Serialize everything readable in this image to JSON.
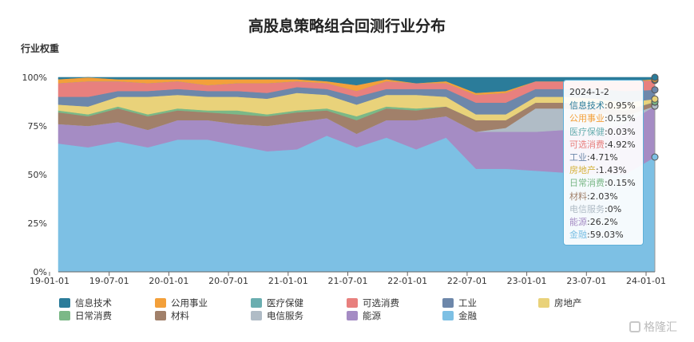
{
  "title": "高股息策略组合回测行业分布",
  "ylabel": "行业权重",
  "watermark": "格隆汇",
  "colors": {
    "信息技术": "#2b7c9a",
    "公用事业": "#f3a03a",
    "医疗保健": "#6aaeb0",
    "可选消费": "#e8807e",
    "工业": "#6d87aa",
    "房地产": "#e9d27a",
    "日常消费": "#7bb887",
    "材料": "#a1806a",
    "电信服务": "#b0bcc6",
    "能源": "#a58cc4",
    "金融": "#7dc0e4"
  },
  "tooltip": {
    "date": "2024-1-2",
    "rows": [
      {
        "name": "信息技术",
        "value": "0.95%"
      },
      {
        "name": "公用事业",
        "value": "0.55%"
      },
      {
        "name": "医疗保健",
        "value": "0.03%"
      },
      {
        "name": "可选消费",
        "value": "4.92%"
      },
      {
        "name": "工业",
        "value": "4.71%"
      },
      {
        "name": "房地产",
        "value": "1.43%"
      },
      {
        "name": "日常消费",
        "value": "0.15%"
      },
      {
        "name": "材料",
        "value": "2.03%"
      },
      {
        "name": "电信服务",
        "value": "0%"
      },
      {
        "name": "能源",
        "value": "26.2%"
      },
      {
        "name": "金融",
        "value": "59.03%"
      }
    ]
  },
  "legend": [
    "信息技术",
    "公用事业",
    "医疗保健",
    "可选消费",
    "工业",
    "房地产",
    "日常消费",
    "材料",
    "电信服务",
    "能源",
    "金融"
  ],
  "chart_data": {
    "type": "area",
    "stacked": true,
    "normalized": true,
    "title": "高股息策略组合回测行业分布",
    "ylabel": "行业权重",
    "ylim": [
      0,
      100
    ],
    "y_ticks": [
      "0%",
      "25%",
      "50%",
      "75%",
      "100%"
    ],
    "x_ticks": [
      "19-01-01",
      "19-07-01",
      "20-01-01",
      "20-07-01",
      "21-01-01",
      "21-07-01",
      "22-01-01",
      "22-07-01",
      "23-01-01",
      "23-07-01",
      "24-01-01"
    ],
    "x": [
      "2019-01",
      "2019-04",
      "2019-07",
      "2019-10",
      "2020-01",
      "2020-04",
      "2020-07",
      "2020-10",
      "2021-01",
      "2021-04",
      "2021-07",
      "2021-10",
      "2022-01",
      "2022-04",
      "2022-07",
      "2022-10",
      "2023-01",
      "2023-04",
      "2023-07",
      "2023-10",
      "2024-01"
    ],
    "series": [
      {
        "name": "金融",
        "values": [
          66,
          64,
          67,
          64,
          68,
          68,
          65,
          62,
          63,
          70,
          64,
          69,
          63,
          69,
          53,
          53,
          52,
          51,
          50,
          50,
          59
        ]
      },
      {
        "name": "能源",
        "values": [
          10,
          11,
          10,
          9,
          10,
          10,
          11,
          13,
          14,
          9,
          7,
          9,
          15,
          11,
          19,
          19,
          20,
          22,
          22,
          26,
          26.2
        ]
      },
      {
        "name": "电信服务",
        "values": [
          0,
          0,
          0,
          0,
          0,
          0,
          0,
          0,
          0,
          0,
          0,
          0,
          0,
          0,
          0,
          2,
          12,
          11,
          10,
          4,
          0
        ]
      },
      {
        "name": "材料",
        "values": [
          6,
          5,
          7,
          7,
          5,
          4,
          5,
          5,
          5,
          4,
          7,
          6,
          5,
          5,
          6,
          4,
          3,
          3,
          3,
          3,
          2.03
        ]
      },
      {
        "name": "日常消费",
        "values": [
          1,
          1,
          1,
          1,
          1,
          1,
          2,
          1,
          1,
          1,
          2,
          1,
          1,
          0,
          0,
          0,
          0,
          0,
          0,
          0,
          0.15
        ]
      },
      {
        "name": "房地产",
        "values": [
          3,
          4,
          5,
          9,
          7,
          7,
          7,
          8,
          9,
          7,
          6,
          6,
          7,
          5,
          3,
          3,
          3,
          3,
          4,
          4,
          1.43
        ]
      },
      {
        "name": "工业",
        "values": [
          4,
          5,
          3,
          3,
          3,
          3,
          3,
          3,
          3,
          3,
          4,
          3,
          3,
          4,
          6,
          6,
          4,
          4,
          5,
          6,
          4.71
        ]
      },
      {
        "name": "可选消费",
        "values": [
          7,
          8,
          5,
          4,
          4,
          3,
          4,
          5,
          3,
          3,
          3,
          4,
          3,
          3,
          4,
          5,
          4,
          4,
          4,
          5,
          4.92
        ]
      },
      {
        "name": "医疗保健",
        "values": [
          0,
          0,
          0,
          0,
          0,
          0,
          0,
          0,
          0,
          0,
          0,
          0,
          0,
          0,
          0,
          0,
          0,
          0,
          0,
          0,
          0.03
        ]
      },
      {
        "name": "公用事业",
        "values": [
          2,
          2,
          1,
          2,
          1,
          3,
          2,
          2,
          1,
          1,
          3,
          1,
          0,
          1,
          1,
          1,
          0,
          0,
          0,
          0,
          0.55
        ]
      },
      {
        "name": "信息技术",
        "values": [
          1,
          0,
          1,
          1,
          1,
          1,
          1,
          1,
          1,
          2,
          4,
          1,
          3,
          2,
          8,
          7,
          2,
          2,
          2,
          2,
          0.95
        ]
      }
    ]
  }
}
